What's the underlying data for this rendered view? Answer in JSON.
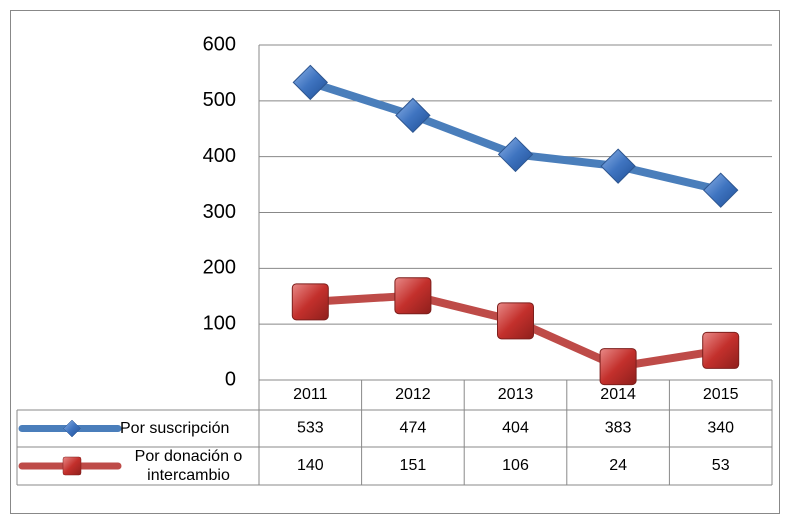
{
  "chart_data": {
    "type": "line",
    "categories": [
      "2011",
      "2012",
      "2013",
      "2014",
      "2015"
    ],
    "series": [
      {
        "name": "Por suscripción",
        "color": "#4a7ebb",
        "marker": "diamond",
        "values": [
          533,
          474,
          404,
          383,
          340
        ]
      },
      {
        "name": "Por donación o intercambio",
        "color": "#be4b48",
        "marker": "square",
        "values": [
          140,
          151,
          106,
          24,
          53
        ]
      }
    ],
    "ylim": [
      0,
      600
    ],
    "yticks": [
      0,
      100,
      200,
      300,
      400,
      500,
      600
    ],
    "grid": true
  }
}
